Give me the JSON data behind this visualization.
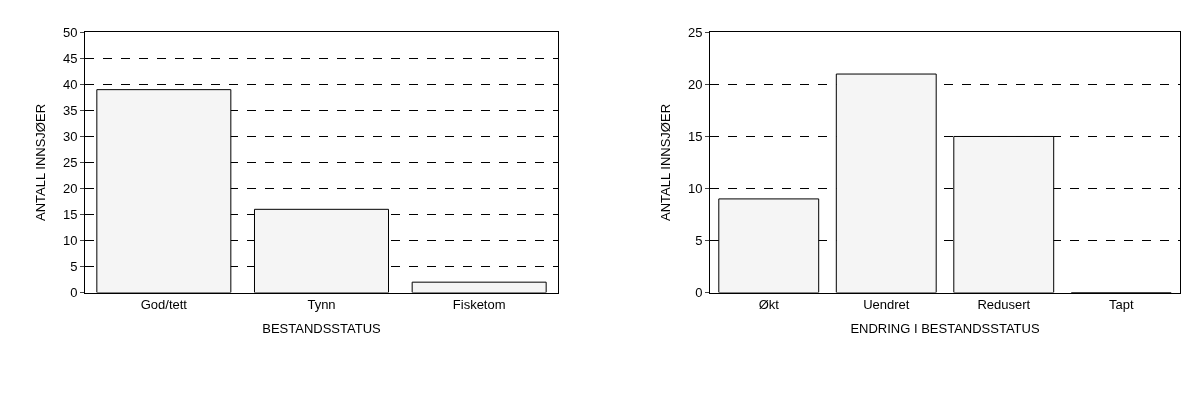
{
  "chart_data": [
    {
      "type": "bar",
      "xlabel": "BESTANDSSTATUS",
      "ylabel": "ANTALL INNSJØER",
      "categories": [
        "God/tett",
        "Tynn",
        "Fisketom"
      ],
      "series": [
        {
          "color": "#f5f5f5",
          "values": [
            39,
            16,
            2
          ]
        }
      ],
      "ylim": [
        0,
        50
      ],
      "yticks": [
        0,
        5,
        10,
        15,
        20,
        25,
        30,
        35,
        40,
        45,
        50
      ],
      "grid": "y"
    },
    {
      "type": "bar",
      "xlabel": "ENDRING I BESTANDSSTATUS",
      "ylabel": "ANTALL INNSJØER",
      "categories": [
        "Økt",
        "Uendret",
        "Redusert",
        "Tapt"
      ],
      "series": [
        {
          "color": "#f5f5f5",
          "values": [
            9,
            21,
            15,
            0
          ]
        }
      ],
      "ylim": [
        0,
        25
      ],
      "yticks": [
        0,
        5,
        10,
        15,
        20,
        25
      ],
      "grid": "y"
    }
  ]
}
